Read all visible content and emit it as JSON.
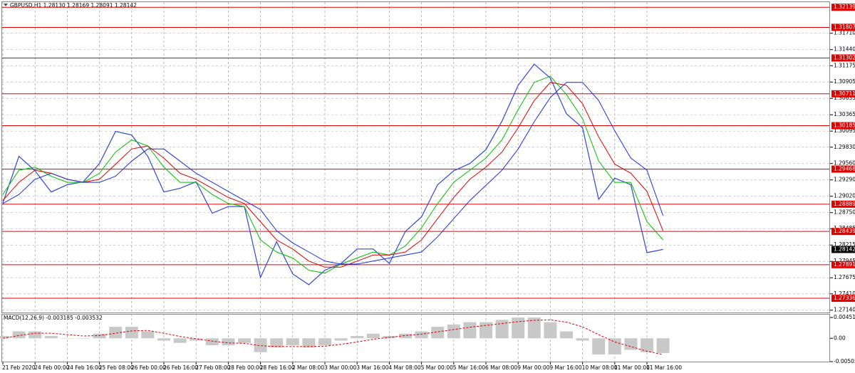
{
  "chart_data": [
    {
      "type": "line",
      "title": "GBPUSD,H1  1.28130 1.28169 1.28091 1.28142",
      "categories": [
        "21 Feb 2020",
        null,
        "24 Feb 00:00",
        null,
        "24 Feb 16:00",
        null,
        "25 Feb 08:00",
        null,
        "26 Feb 00:00",
        null,
        "26 Feb 16:00",
        null,
        "27 Feb 08:00",
        null,
        "28 Feb 00:00",
        null,
        "28 Feb 16:00",
        null,
        "2 Mar 08:00",
        null,
        "3 Mar 00:00",
        null,
        "3 Mar 16:00",
        null,
        "4 Mar 08:00",
        null,
        "5 Mar 00:00",
        null,
        "5 Mar 16:00",
        null,
        "6 Mar 08:00",
        null,
        "9 Mar 00:00",
        null,
        "9 Mar 16:00",
        null,
        "10 Mar 08:00",
        null,
        "11 Mar 00:00",
        null,
        "11 Mar 16:00",
        null
      ],
      "series": [
        {
          "color": "#2f46d6",
          "values": [
            1.2891,
            1.2968,
            1.2944,
            1.2909,
            1.2921,
            1.2926,
            1.2956,
            1.3009,
            1.3003,
            1.2968,
            1.2909,
            1.2915,
            1.2926,
            1.2874,
            1.2885,
            1.2885,
            1.2768,
            1.2827,
            1.2774,
            1.2756,
            1.278,
            1.2791,
            1.2815,
            1.2815,
            1.2791,
            1.2844,
            1.2868,
            1.2921,
            1.2944,
            1.2956,
            1.2979,
            1.3026,
            1.3085,
            1.312,
            1.3097,
            1.3038,
            1.3015,
            1.2897,
            1.2932,
            1.2921,
            1.2809,
            1.28142
          ]
        },
        {
          "color": "#00c000",
          "values": [
            1.2905,
            1.2945,
            1.295,
            1.2935,
            1.2925,
            1.2925,
            1.294,
            1.2975,
            1.2995,
            1.2985,
            1.295,
            1.2925,
            1.2925,
            1.2905,
            1.289,
            1.2885,
            1.283,
            1.281,
            1.28,
            1.278,
            1.2775,
            1.279,
            1.28,
            1.281,
            1.2805,
            1.282,
            1.285,
            1.289,
            1.2925,
            1.2945,
            1.2965,
            1.2995,
            1.3045,
            1.309,
            1.31,
            1.307,
            1.303,
            1.296,
            1.2925,
            1.2925,
            1.286,
            1.283
          ]
        },
        {
          "color": "#e00000",
          "values": [
            1.2895,
            1.2925,
            1.2945,
            1.294,
            1.293,
            1.2925,
            1.293,
            1.2955,
            1.298,
            1.2985,
            1.2965,
            1.294,
            1.293,
            1.2915,
            1.29,
            1.289,
            1.286,
            1.283,
            1.2815,
            1.2795,
            1.2785,
            1.2785,
            1.2795,
            1.2805,
            1.2805,
            1.281,
            1.283,
            1.2865,
            1.29,
            1.293,
            1.295,
            1.2975,
            1.3015,
            1.306,
            1.309,
            1.3085,
            1.3055,
            1.3,
            1.2955,
            1.294,
            1.291,
            1.2845
          ]
        },
        {
          "color": "#1a2ee0",
          "values": [
            1.289,
            1.2905,
            1.293,
            1.294,
            1.293,
            1.2925,
            1.2925,
            1.2935,
            1.296,
            1.298,
            1.298,
            1.296,
            1.294,
            1.2925,
            1.291,
            1.2895,
            1.288,
            1.2845,
            1.2825,
            1.281,
            1.2795,
            1.279,
            1.279,
            1.2795,
            1.28,
            1.2805,
            1.281,
            1.2835,
            1.2865,
            1.2895,
            1.292,
            1.2945,
            1.298,
            1.3025,
            1.3065,
            1.309,
            1.309,
            1.306,
            1.301,
            1.2965,
            1.2945,
            1.287
          ]
        }
      ],
      "ylim": [
        1.2709,
        1.322
      ],
      "yticks": [
        {
          "value": 1.3171,
          "label": "1.31710"
        },
        {
          "value": 1.3144,
          "label": "1.31440"
        },
        1.31175,
        1.30905,
        1.30635,
        1.30365,
        1.30095,
        {
          "value": 1.2983,
          "label": "1.29830"
        },
        {
          "value": 1.2956,
          "label": "1.29560"
        },
        {
          "value": 1.2929,
          "label": "1.29290"
        },
        {
          "value": 1.2902,
          "label": "1.29020"
        },
        {
          "value": 1.2875,
          "label": "1.28750"
        },
        1.28485,
        1.28215,
        1.27945,
        1.27675,
        {
          "value": 1.2741,
          "label": "1.27410"
        },
        {
          "value": 1.2714,
          "label": "1.27140"
        }
      ],
      "levels": [
        1.32139,
        1.31807,
        1.31302,
        1.30711,
        1.30185,
        1.29468,
        1.28889,
        1.28439,
        1.27891,
        1.27336
      ],
      "level_color": "#e00000",
      "last_price": 1.28142,
      "grid": true
    },
    {
      "type": "macd",
      "title": "MACD(12,26,9) -0.003185 -0.003532",
      "series": [
        {
          "color": "#c8c8c8",
          "values": [
            0.0005,
            0.0015,
            0.0015,
            0.0005,
            0.0,
            0.0,
            0.001,
            0.0025,
            0.0025,
            0.0015,
            -0.0005,
            -0.001,
            -0.0005,
            -0.0015,
            -0.0015,
            -0.001,
            -0.003,
            -0.002,
            -0.0015,
            -0.002,
            -0.0015,
            -0.0005,
            0.0005,
            0.001,
            0.0005,
            0.001,
            0.0015,
            0.0025,
            0.003,
            0.0035,
            0.0035,
            0.004,
            0.0045,
            0.0045,
            0.0035,
            0.0015,
            -0.0005,
            -0.0035,
            -0.0035,
            -0.0025,
            -0.003,
            -0.003185
          ]
        },
        {
          "color": "#e00000",
          "dash": true,
          "values": [
            0.0,
            0.0006,
            0.0011,
            0.0011,
            0.0008,
            0.0005,
            0.0006,
            0.0011,
            0.0016,
            0.0017,
            0.0011,
            0.0004,
            -0.0001,
            -0.0006,
            -0.001,
            -0.0011,
            -0.0016,
            -0.0018,
            -0.0018,
            -0.0018,
            -0.0017,
            -0.0013,
            -0.0008,
            -0.0002,
            0.0002,
            0.0006,
            0.0009,
            0.0014,
            0.0019,
            0.0024,
            0.0028,
            0.0032,
            0.0036,
            0.0039,
            0.004,
            0.0035,
            0.0025,
            0.0008,
            -0.0008,
            -0.0018,
            -0.0028,
            -0.003532
          ]
        }
      ],
      "ylim": [
        -0.005052,
        0.004516
      ],
      "yticks": [
        0.004516,
        {
          "value": 0,
          "label": "0.00"
        },
        -0.005052
      ]
    }
  ]
}
